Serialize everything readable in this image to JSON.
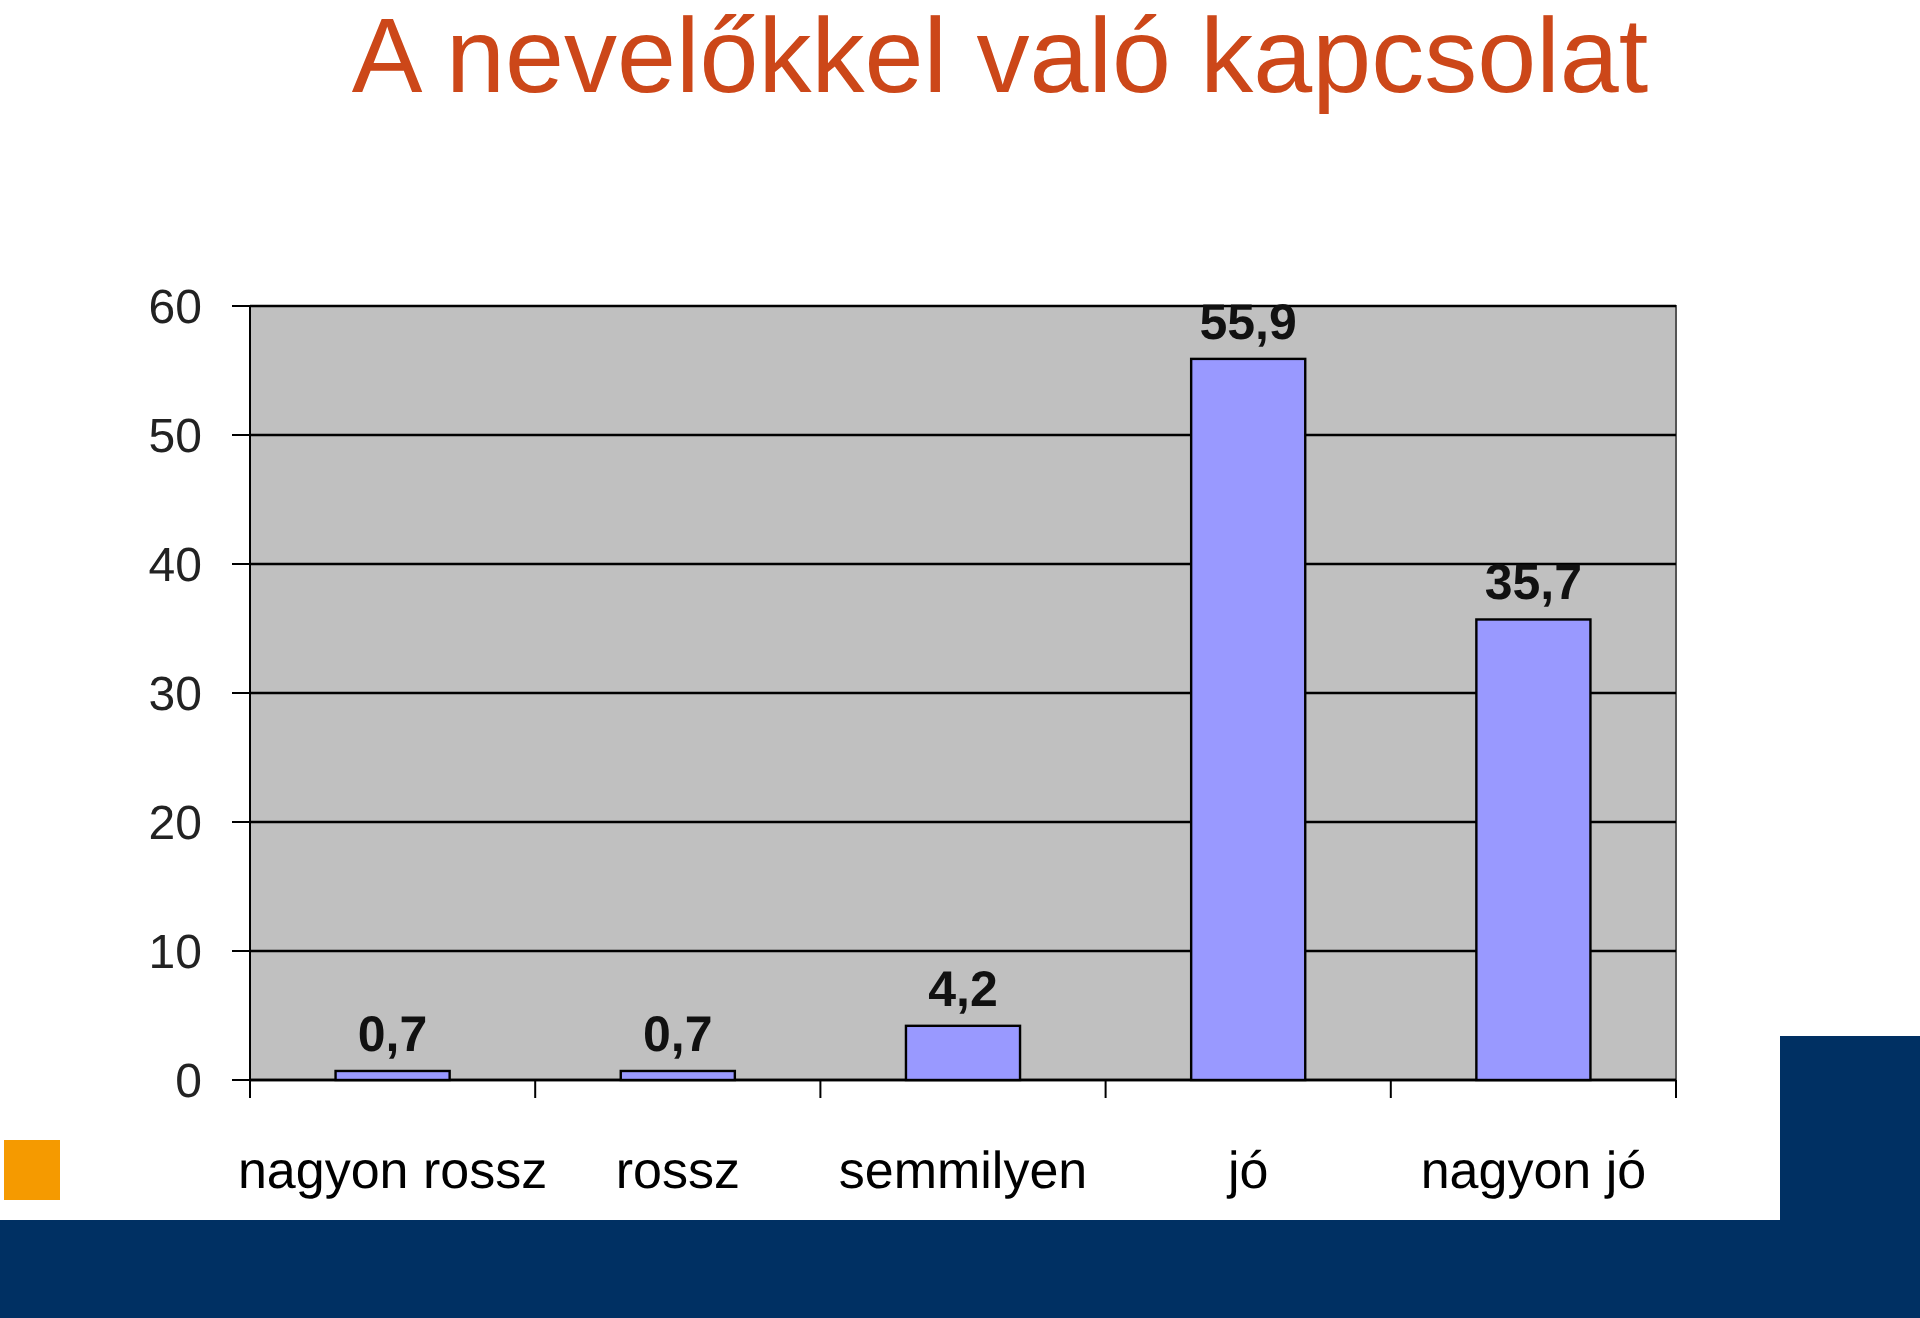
{
  "chart_data": {
    "type": "bar",
    "title": "A nevelőkkel való kapcsolat",
    "categories": [
      "nagyon rossz",
      "rossz",
      "semmilyen",
      "jó",
      "nagyon jó"
    ],
    "values": [
      0.7,
      0.7,
      4.2,
      55.9,
      35.7
    ],
    "value_labels": [
      "0,7",
      "0,7",
      "4,2",
      "55,9",
      "35,7"
    ],
    "color": "#9999ff",
    "ylim": [
      0,
      60
    ],
    "yticks": [
      0,
      10,
      20,
      30,
      40,
      50,
      60
    ],
    "grid": "y"
  }
}
